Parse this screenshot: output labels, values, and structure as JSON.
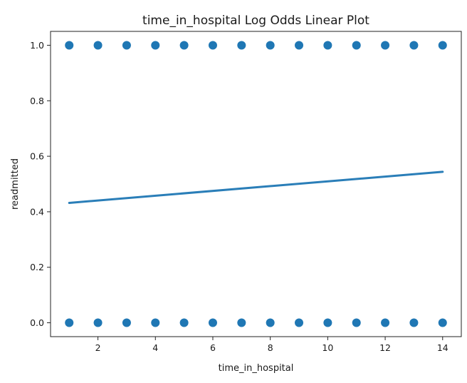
{
  "chart_data": {
    "type": "scatter",
    "title": "time_in_hospital Log Odds Linear Plot",
    "xlabel": "time_in_hospital",
    "ylabel": "readmitted",
    "xlim": [
      0.35,
      14.65
    ],
    "ylim": [
      -0.05,
      1.05
    ],
    "xticks": [
      2,
      4,
      6,
      8,
      10,
      12,
      14
    ],
    "xtick_labels": [
      "2",
      "4",
      "6",
      "8",
      "10",
      "12",
      "14"
    ],
    "yticks": [
      0.0,
      0.2,
      0.4,
      0.6,
      0.8,
      1.0
    ],
    "ytick_labels": [
      "0.0",
      "0.2",
      "0.4",
      "0.6",
      "0.8",
      "1.0"
    ],
    "grid": false,
    "color": "#1f77b4",
    "series": [
      {
        "kind": "points",
        "x": [
          1,
          2,
          3,
          4,
          5,
          6,
          7,
          8,
          9,
          10,
          11,
          12,
          13,
          14,
          1,
          2,
          3,
          4,
          5,
          6,
          7,
          8,
          9,
          10,
          11,
          12,
          13,
          14
        ],
        "y": [
          1,
          1,
          1,
          1,
          1,
          1,
          1,
          1,
          1,
          1,
          1,
          1,
          1,
          1,
          0,
          0,
          0,
          0,
          0,
          0,
          0,
          0,
          0,
          0,
          0,
          0,
          0,
          0
        ]
      },
      {
        "kind": "fit-line",
        "x": [
          1,
          14
        ],
        "y": [
          0.432,
          0.544
        ]
      }
    ]
  }
}
